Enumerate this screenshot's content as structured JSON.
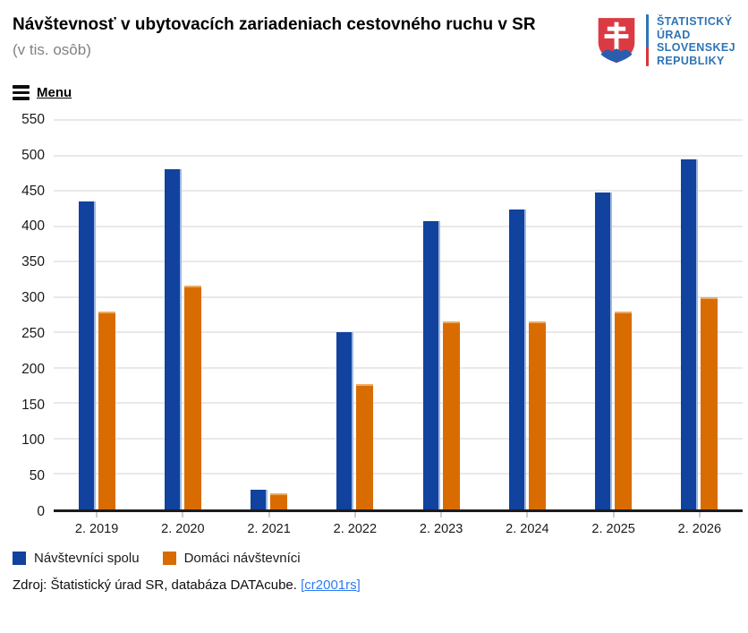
{
  "header": {
    "title": "Návštevnosť v ubytovacích zariadeniach cestovného ruchu v SR",
    "subtitle": "(v tis. osôb)"
  },
  "logo": {
    "org_name": "Štatistický úrad Slovenskej republiky",
    "lines": [
      "ŠTATISTICKÝ",
      "ÚRAD",
      "SLOVENSKEJ",
      "REPUBLIKY"
    ],
    "colors": {
      "text_blue": "#2e74b5",
      "shield_red": "#dc3a43",
      "cross_white": "#ffffff",
      "mound_blue": "#2b5dae"
    }
  },
  "menu": {
    "label": "Menu"
  },
  "chart_data": {
    "type": "bar",
    "title": "Návštevnosť v ubytovacích zariadeniach cestovného ruchu v SR",
    "units": "v tis. osôb",
    "categories": [
      "2. 2019",
      "2. 2020",
      "2. 2021",
      "2. 2022",
      "2. 2023",
      "2. 2024",
      "2. 2025",
      "2. 2026"
    ],
    "series": [
      {
        "name": "Návštevníci spolu",
        "color": "#10429e",
        "values": [
          435,
          481,
          28,
          250,
          407,
          424,
          448,
          495
        ]
      },
      {
        "name": "Domáci návštevníci",
        "color": "#d96c00",
        "values": [
          280,
          316,
          23,
          177,
          265,
          265,
          280,
          300
        ]
      }
    ],
    "ylim": [
      0,
      550
    ],
    "yticks": [
      0,
      50,
      100,
      150,
      200,
      250,
      300,
      350,
      400,
      450,
      500,
      550
    ],
    "grid": "horizontal",
    "legend_position": "bottom",
    "xlabel": "",
    "ylabel": ""
  },
  "source": {
    "prefix": "Zdroj: Štatistický úrad SR, databáza DATAcube. ",
    "bracket_open": "[",
    "link_text": "cr2001rs",
    "bracket_close": "]",
    "link_color": "#2e7cf0"
  }
}
